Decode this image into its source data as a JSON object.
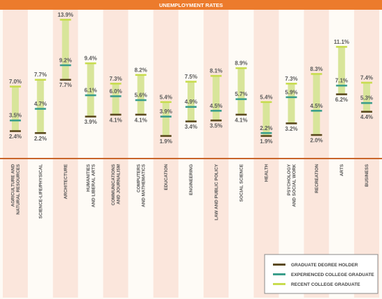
{
  "colors": {
    "title_bg": "#ec7b2c",
    "title_text": "#ffffff",
    "band_pink": "#fbe6dc",
    "band_white": "#fefbf6",
    "axis_line": "#c9652a",
    "range_bar": "#d8e59a",
    "graduate": "#5b4a1e",
    "experienced": "#3b9e8c",
    "recent": "#c8dc4f",
    "legend_border": "#8a8a8a"
  },
  "chart_data": {
    "type": "range",
    "title": "UNEMPLOYMENT RATES",
    "ylim": [
      0,
      14.5
    ],
    "categories": [
      "AGRICULTURE AND NATURAL RESOURCES",
      "SCIENCE-LIFE/PHYSICAL",
      "ARCHITECTURE",
      "HUMANITIES AND LIBERAL ARTS",
      "COMMUNICATIONS AND JOURNALISM",
      "COMPUTERS AND MATHEMATICS",
      "EDUCATION",
      "ENGINEERING",
      "LAW AND PUBLIC POLICY",
      "SOCIAL SCIENCE",
      "HEALTH",
      "PSYCHOLOGY AND SOCIAL WORK",
      "RECREATION",
      "ARTS",
      "BUSINESS"
    ],
    "category_lines": [
      [
        "AGRICULTURE AND",
        "NATURAL RESOURCES"
      ],
      [
        "SCIENCE-LIFE/PHYSICAL"
      ],
      [
        "ARCHITECTURE"
      ],
      [
        "HUMANITIES",
        "AND LIBERAL ARTS"
      ],
      [
        "COMMUNICATIONS",
        "AND JOURNALISM"
      ],
      [
        "COMPUTERS",
        "AND MATHEMATICS"
      ],
      [
        "EDUCATION"
      ],
      [
        "ENGINEERING"
      ],
      [
        "LAW AND PUBLIC POLICY"
      ],
      [
        "SOCIAL SCIENCE"
      ],
      [
        "HEALTH"
      ],
      [
        "PSYCHOLOGY",
        "AND SOCIAL WORK"
      ],
      [
        "RECREATION"
      ],
      [
        "ARTS"
      ],
      [
        "BUSINESS"
      ]
    ],
    "series": [
      {
        "name": "RECENT COLLEGE GRADUATE",
        "values": [
          7.0,
          7.7,
          13.9,
          9.4,
          7.3,
          8.2,
          5.4,
          7.5,
          8.1,
          8.9,
          5.4,
          7.3,
          8.3,
          11.1,
          7.4
        ]
      },
      {
        "name": "EXPERIENCED COLLEGE GRADUATE",
        "values": [
          3.5,
          4.7,
          9.2,
          6.1,
          6.0,
          5.6,
          3.9,
          4.9,
          4.5,
          5.7,
          2.2,
          5.9,
          4.5,
          7.1,
          5.3
        ]
      },
      {
        "name": "GRADUATE DEGREE HOLDER",
        "values": [
          2.4,
          2.2,
          7.7,
          3.9,
          4.1,
          4.1,
          1.9,
          3.4,
          3.5,
          4.1,
          1.9,
          3.2,
          2.0,
          6.2,
          4.4
        ]
      }
    ],
    "value_labels": {
      "recent": [
        "7.0%",
        "7.7%",
        "13.9%",
        "9.4%",
        "7.3%",
        "8.2%",
        "5.4%",
        "7.5%",
        "8.1%",
        "8.9%",
        "5.4%",
        "7.3%",
        "8.3%",
        "11.1%",
        "7.4%"
      ],
      "experienced": [
        "3.5%",
        "4.7%",
        "9.2%",
        "6.1%",
        "6.0%",
        "5.6%",
        "3.9%",
        "4.9%",
        "4.5%",
        "5.7%",
        "2.2%",
        "5.9%",
        "4.5%",
        "7.1%",
        "5.3%"
      ],
      "graduate": [
        "2.4%",
        "2.2%",
        "7.7%",
        "3.9%",
        "4.1%",
        "4.1%",
        "1.9%",
        "3.4%",
        "3.5%",
        "4.1%",
        "1.9%",
        "3.2%",
        "2.0%",
        "6.2%",
        "4.4%"
      ]
    },
    "legend": {
      "placement": "bottom-right",
      "entries": [
        {
          "label": "GRADUATE DEGREE HOLDER",
          "color_key": "graduate"
        },
        {
          "label": "EXPERIENCED COLLEGE GRADUATE",
          "color_key": "experienced"
        },
        {
          "label": "RECENT COLLEGE GRADUATE",
          "color_key": "recent"
        }
      ]
    },
    "grid": false
  }
}
